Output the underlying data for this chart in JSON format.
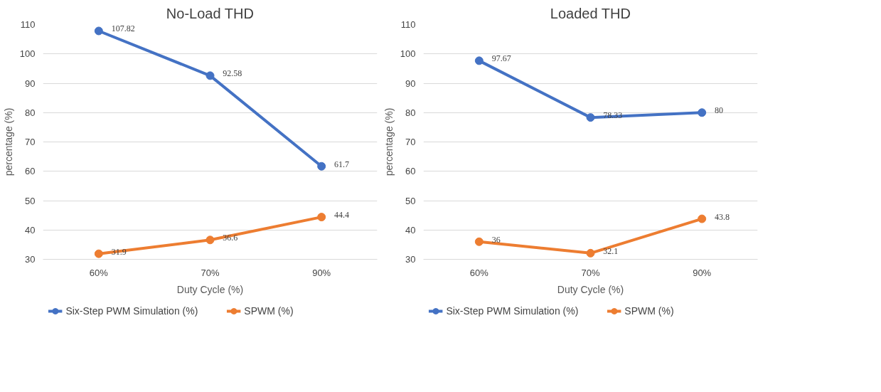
{
  "chart_data": [
    {
      "type": "line",
      "title": "No-Load THD",
      "xlabel": "Duty Cycle (%)",
      "ylabel": "percentage (%)",
      "categories": [
        "60%",
        "70%",
        "90%"
      ],
      "ylim": [
        30,
        110
      ],
      "yticks": [
        30,
        40,
        50,
        60,
        70,
        80,
        90,
        100,
        110
      ],
      "grid": "y",
      "legend": "bottom",
      "marker": "circle",
      "data_labels": true,
      "series": [
        {
          "name": "Six-Step PWM Simulation (%)",
          "color": "#4472c4",
          "values": [
            107.82,
            92.58,
            61.7
          ]
        },
        {
          "name": "SPWM (%)",
          "color": "#ed7d31",
          "values": [
            31.9,
            36.6,
            44.4
          ]
        }
      ]
    },
    {
      "type": "line",
      "title": "Loaded THD",
      "xlabel": "Duty Cycle (%)",
      "ylabel": "percentage (%)",
      "categories": [
        "60%",
        "70%",
        "90%"
      ],
      "ylim": [
        30,
        110
      ],
      "yticks": [
        30,
        40,
        50,
        60,
        70,
        80,
        90,
        100,
        110
      ],
      "grid": "y",
      "legend": "bottom",
      "marker": "circle",
      "data_labels": true,
      "series": [
        {
          "name": "Six-Step PWM Simulation (%)",
          "color": "#4472c4",
          "values": [
            97.67,
            78.33,
            80
          ]
        },
        {
          "name": "SPWM (%)",
          "color": "#ed7d31",
          "values": [
            36,
            32.1,
            43.8
          ]
        }
      ]
    }
  ]
}
